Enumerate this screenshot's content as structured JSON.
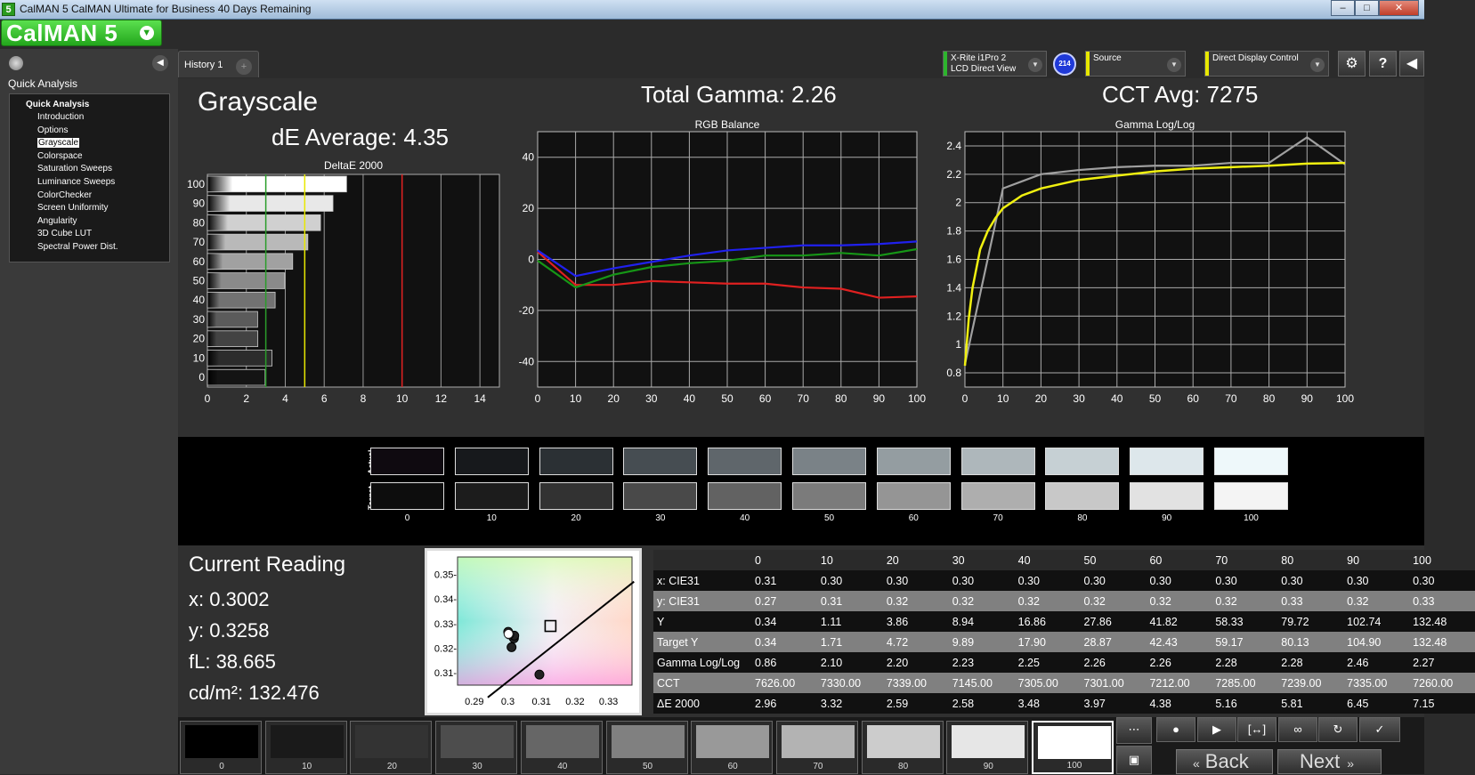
{
  "window": {
    "app_icon": "5",
    "title": "CalMAN 5 CalMAN Ultimate for Business 40 Days Remaining",
    "minimize_icon": "minimize-icon",
    "maximize_icon": "maximize-icon",
    "close_icon": "close-icon"
  },
  "logo": {
    "text": "CalMAN 5",
    "dropdown_icon": "chevron-down-icon"
  },
  "sidebar": {
    "title": "Quick Analysis",
    "group": "Quick Analysis",
    "items": [
      "Introduction",
      "Options",
      "Grayscale",
      "Colorspace",
      "Saturation Sweeps",
      "Luminance Sweeps",
      "ColorChecker",
      "Screen Uniformity",
      "Angularity",
      "3D Cube LUT",
      "Spectral Power Dist."
    ],
    "selected": "Grayscale"
  },
  "tabs": [
    {
      "label": "History 1"
    }
  ],
  "devices": {
    "meter": {
      "line1": "X-Rite i1Pro 2",
      "line2": "LCD Direct View",
      "color": "#2db52d"
    },
    "badge": "214",
    "source": {
      "label": "Source",
      "color": "#e8e800"
    },
    "display": {
      "label": "Direct Display Control",
      "color": "#e8e800"
    }
  },
  "main": {
    "heading": "Grayscale",
    "de_average": "dE Average: 4.35",
    "total_gamma": "Total Gamma: 2.26",
    "cct_avg": "CCT Avg: 7275"
  },
  "chart_data": [
    {
      "type": "bar",
      "orientation": "horizontal",
      "title": "DeltaE 2000",
      "categories": [
        "0",
        "10",
        "20",
        "30",
        "40",
        "50",
        "60",
        "70",
        "80",
        "90",
        "100"
      ],
      "values": [
        2.96,
        3.32,
        2.59,
        2.58,
        3.48,
        3.97,
        4.38,
        5.16,
        5.81,
        6.45,
        7.15
      ],
      "xlim": [
        0,
        15
      ],
      "xticks": [
        0,
        2,
        4,
        6,
        8,
        10,
        12,
        14
      ],
      "thresholds": [
        {
          "value": 3,
          "color": "#2a9d2a"
        },
        {
          "value": 5,
          "color": "#e8e800"
        },
        {
          "value": 10,
          "color": "#e02020"
        }
      ]
    },
    {
      "type": "line",
      "title": "RGB Balance",
      "x": [
        0,
        10,
        20,
        30,
        40,
        50,
        60,
        70,
        80,
        90,
        100
      ],
      "xticks": [
        0,
        10,
        20,
        30,
        40,
        50,
        60,
        70,
        80,
        90,
        100
      ],
      "ylim": [
        -50,
        50
      ],
      "yticks": [
        40,
        20,
        0,
        -20,
        -40
      ],
      "series": [
        {
          "color": "#e02020",
          "values": [
            3,
            -10,
            -10,
            -8.5,
            -9,
            -9.5,
            -9.5,
            -11,
            -11.5,
            -15,
            -14.5
          ]
        },
        {
          "color": "#169616",
          "values": [
            -0.5,
            -11,
            -6,
            -3,
            -1.5,
            -0.5,
            1.5,
            1.5,
            2.5,
            1.5,
            4
          ]
        },
        {
          "color": "#2020ee",
          "values": [
            3.5,
            -6.5,
            -3.5,
            -1,
            1.5,
            3.5,
            4.5,
            5.5,
            5.5,
            6,
            7
          ]
        }
      ]
    },
    {
      "type": "line",
      "title": "Gamma Log/Log",
      "x": [
        0,
        10,
        20,
        30,
        40,
        50,
        60,
        70,
        80,
        90,
        100
      ],
      "xticks": [
        0,
        10,
        20,
        30,
        40,
        50,
        60,
        70,
        80,
        90,
        100
      ],
      "ylim": [
        0.7,
        2.5
      ],
      "yticks": [
        2.4,
        2.2,
        2,
        1.8,
        1.6,
        1.4,
        1.2,
        1,
        0.8
      ],
      "series": [
        {
          "color": "#a0a0a0",
          "values": [
            0.86,
            2.1,
            2.2,
            2.23,
            2.25,
            2.26,
            2.26,
            2.28,
            2.28,
            2.46,
            2.27
          ]
        }
      ],
      "target_curve_color": "#f0f010",
      "target_curve": [
        [
          0,
          0.85
        ],
        [
          1,
          1.18
        ],
        [
          2,
          1.4
        ],
        [
          4,
          1.67
        ],
        [
          6,
          1.8
        ],
        [
          8,
          1.89
        ],
        [
          10,
          1.96
        ],
        [
          15,
          2.05
        ],
        [
          20,
          2.1
        ],
        [
          30,
          2.16
        ],
        [
          40,
          2.19
        ],
        [
          50,
          2.22
        ],
        [
          60,
          2.24
        ],
        [
          70,
          2.25
        ],
        [
          80,
          2.26
        ],
        [
          90,
          2.275
        ],
        [
          100,
          2.28
        ]
      ]
    },
    {
      "type": "scatter",
      "title": "",
      "xlim": [
        0.285,
        0.337
      ],
      "ylim": [
        0.305,
        0.357
      ],
      "xticks": [
        0.29,
        0.3,
        0.31,
        0.32,
        0.33
      ],
      "yticks": [
        0.35,
        0.34,
        0.33,
        0.32,
        0.31
      ],
      "xtick_labels": [
        "0.29",
        "0.3",
        "0.31",
        "0.32",
        "0.33"
      ],
      "ytick_labels": [
        "0.35-",
        "0.34-",
        "0.33-",
        "0.32-",
        "0.31-"
      ],
      "points": [
        [
          0.3094,
          0.3093
        ],
        [
          0.3011,
          0.3204
        ],
        [
          0.3018,
          0.324
        ],
        [
          0.3019,
          0.3251
        ],
        [
          0.3004,
          0.3256
        ],
        [
          0.3001,
          0.3266
        ],
        [
          0.3002,
          0.3258
        ]
      ],
      "target": [
        0.3127,
        0.329
      ],
      "locus": [
        [
          0.294,
          0.3
        ],
        [
          0.3376,
          0.347
        ]
      ]
    }
  ],
  "swatches": {
    "actual_label": "Actual",
    "target_label": "Target",
    "labels": [
      "0",
      "10",
      "20",
      "30",
      "40",
      "50",
      "60",
      "70",
      "80",
      "90",
      "100"
    ],
    "actual_colors": [
      "#0f0a10",
      "#17191c",
      "#2b3034",
      "#464d52",
      "#5f666b",
      "#7a8287",
      "#949da1",
      "#aeb7bb",
      "#c6d0d4",
      "#dde7eb",
      "#eef8fa"
    ],
    "target_colors": [
      "#0d0d0d",
      "#1c1c1c",
      "#323232",
      "#494949",
      "#626262",
      "#7b7b7b",
      "#959595",
      "#aeaeae",
      "#c8c8c8",
      "#e2e2e2",
      "#f4f4f4"
    ]
  },
  "reading": {
    "title": "Current Reading",
    "x": "x: 0.3002",
    "y": "y: 0.3258",
    "fl": "fL: 38.665",
    "cdm": "cd/m²: 132.476"
  },
  "table": {
    "columns": [
      "0",
      "10",
      "20",
      "30",
      "40",
      "50",
      "60",
      "70",
      "80",
      "90",
      "100"
    ],
    "rows": [
      {
        "label": "x: CIE31",
        "values": [
          "0.31",
          "0.30",
          "0.30",
          "0.30",
          "0.30",
          "0.30",
          "0.30",
          "0.30",
          "0.30",
          "0.30",
          "0.30"
        ]
      },
      {
        "label": "y: CIE31",
        "values": [
          "0.27",
          "0.31",
          "0.32",
          "0.32",
          "0.32",
          "0.32",
          "0.32",
          "0.32",
          "0.33",
          "0.32",
          "0.33"
        ]
      },
      {
        "label": "Y",
        "values": [
          "0.34",
          "1.11",
          "3.86",
          "8.94",
          "16.86",
          "27.86",
          "41.82",
          "58.33",
          "79.72",
          "102.74",
          "132.48"
        ]
      },
      {
        "label": "Target Y",
        "values": [
          "0.34",
          "1.71",
          "4.72",
          "9.89",
          "17.90",
          "28.87",
          "42.43",
          "59.17",
          "80.13",
          "104.90",
          "132.48"
        ]
      },
      {
        "label": "Gamma Log/Log",
        "values": [
          "0.86",
          "2.10",
          "2.20",
          "2.23",
          "2.25",
          "2.26",
          "2.26",
          "2.28",
          "2.28",
          "2.46",
          "2.27"
        ]
      },
      {
        "label": "CCT",
        "values": [
          "7626.00",
          "7330.00",
          "7339.00",
          "7145.00",
          "7305.00",
          "7301.00",
          "7212.00",
          "7285.00",
          "7239.00",
          "7335.00",
          "7260.00"
        ]
      },
      {
        "label": "ΔE 2000",
        "values": [
          "2.96",
          "3.32",
          "2.59",
          "2.58",
          "3.48",
          "3.97",
          "4.38",
          "5.16",
          "5.81",
          "6.45",
          "7.15"
        ]
      }
    ]
  },
  "nav": {
    "patches": [
      "0",
      "10",
      "20",
      "30",
      "40",
      "50",
      "60",
      "70",
      "80",
      "90",
      "100"
    ],
    "patch_colors": [
      "#000000",
      "#1a1a1a",
      "#333333",
      "#4d4d4d",
      "#666666",
      "#808080",
      "#999999",
      "#b3b3b3",
      "#cccccc",
      "#e6e6e6",
      "#ffffff"
    ],
    "selected": "100",
    "back_label": "Back",
    "next_label": "Next",
    "back_icon": "double-chevron-left-icon",
    "next_icon": "double-chevron-right-icon"
  }
}
